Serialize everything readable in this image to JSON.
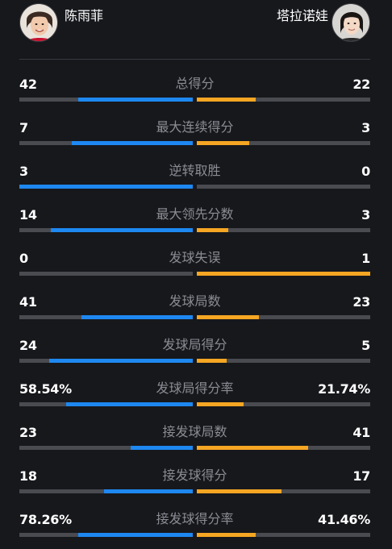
{
  "players": {
    "left": {
      "name": "陈雨菲",
      "color": "#1e88f0"
    },
    "right": {
      "name": "塔拉诺娃",
      "color": "#f5a623"
    }
  },
  "stats": [
    {
      "label": "总得分",
      "left": "42",
      "right": "22",
      "left_fill": 0.66,
      "right_fill": 0.34
    },
    {
      "label": "最大连续得分",
      "left": "7",
      "right": "3",
      "left_fill": 0.7,
      "right_fill": 0.3
    },
    {
      "label": "逆转取胜",
      "left": "3",
      "right": "0",
      "left_fill": 1.0,
      "right_fill": 0.0
    },
    {
      "label": "最大领先分数",
      "left": "14",
      "right": "3",
      "left_fill": 0.82,
      "right_fill": 0.18
    },
    {
      "label": "发球失误",
      "left": "0",
      "right": "1",
      "left_fill": 0.0,
      "right_fill": 1.0
    },
    {
      "label": "发球局数",
      "left": "41",
      "right": "23",
      "left_fill": 0.64,
      "right_fill": 0.36
    },
    {
      "label": "发球局得分",
      "left": "24",
      "right": "5",
      "left_fill": 0.83,
      "right_fill": 0.17
    },
    {
      "label": "发球局得分率",
      "left": "58.54%",
      "right": "21.74%",
      "left_fill": 0.73,
      "right_fill": 0.27
    },
    {
      "label": "接发球局数",
      "left": "23",
      "right": "41",
      "left_fill": 0.36,
      "right_fill": 0.64
    },
    {
      "label": "接发球得分",
      "left": "18",
      "right": "17",
      "left_fill": 0.51,
      "right_fill": 0.49
    },
    {
      "label": "接发球得分率",
      "left": "78.26%",
      "right": "41.46%",
      "left_fill": 0.66,
      "right_fill": 0.34
    }
  ]
}
